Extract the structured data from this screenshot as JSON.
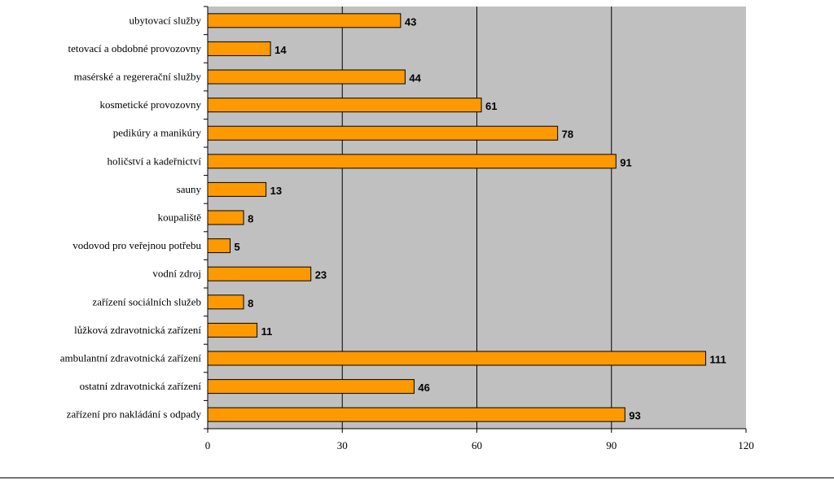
{
  "chart_data": {
    "type": "bar",
    "orientation": "horizontal",
    "categories": [
      "ubytovací služby",
      "tetovací a obdobné provozovny",
      "masérské a regererační služby",
      "kosmetické provozovny",
      "pedikúry a manikúry",
      "holičství a kadeřnictví",
      "sauny",
      "koupaliště",
      "vodovod pro veřejnou potřebu",
      "vodní zdroj",
      "zařízení sociálních služeb",
      "lůžková zdravotnická zařízení",
      "ambulantní zdravotnická zařízení",
      "ostatní zdravotnická zařízení",
      "zařízení pro nakládání s odpady"
    ],
    "values": [
      43,
      14,
      44,
      61,
      78,
      91,
      13,
      8,
      5,
      23,
      8,
      11,
      111,
      46,
      93
    ],
    "xlim": [
      0,
      120
    ],
    "xticks": [
      "0",
      "30",
      "60",
      "90",
      "120"
    ],
    "gridlines": "vertical",
    "legend": "none",
    "title": "",
    "xlabel": "",
    "ylabel": "",
    "colors": {
      "bar_fill": "#FF9900",
      "bar_stroke": "#000000",
      "plot_background": "#C0C0C0"
    }
  }
}
